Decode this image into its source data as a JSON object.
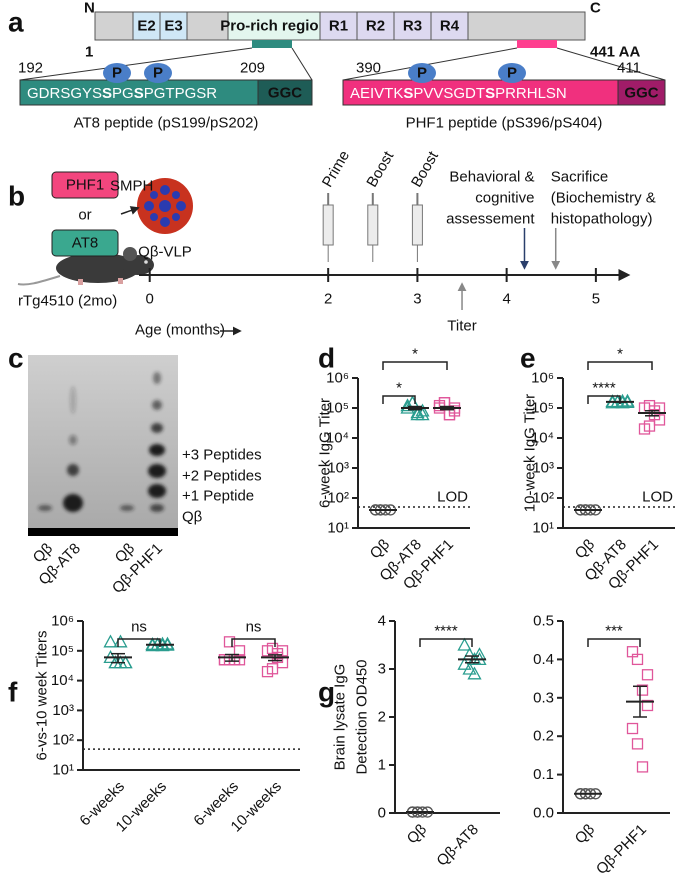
{
  "panel_labels": [
    "a",
    "b",
    "c",
    "d",
    "e",
    "f",
    "g"
  ],
  "protein": {
    "n_term": "N",
    "c_term": "C",
    "start": "1",
    "end": "441 AA",
    "domains": [
      "E2",
      "E3",
      "Pro-rich region",
      "R1",
      "R2",
      "R3",
      "R4"
    ]
  },
  "peptides": [
    {
      "start": "192",
      "end": "209",
      "sequence": [
        "GDRSGYS",
        "S",
        "PG",
        "S",
        "PGTPGSR"
      ],
      "linker": "GGC",
      "phospho": [
        "P",
        "P"
      ],
      "caption": "AT8 peptide (pS199/pS202)"
    },
    {
      "start": "390",
      "end": "411",
      "sequence": [
        "AEIVTK",
        "S",
        "PVVSGDT",
        "S",
        "PRRHLSN"
      ],
      "linker": "GGC",
      "phospho": [
        "P",
        "P"
      ],
      "caption": "PHF1 peptide (pS396/pS404)"
    }
  ],
  "timeline": {
    "conjugate": {
      "peptides": [
        "PHF1",
        "AT8"
      ],
      "or": "or",
      "linker": "SMPH",
      "carrier": "Qβ-VLP"
    },
    "mouse": "rTg4510 (2mo)",
    "xlim": [
      -0.12,
      5.36
    ],
    "xticks": [
      0,
      2,
      3,
      4,
      5
    ],
    "xlabel": "Age (months)",
    "events": [
      {
        "label": "Prime",
        "x": 2
      },
      {
        "label": "Boost",
        "x": 2.5
      },
      {
        "label": "Boost",
        "x": 3
      }
    ],
    "behavioral": {
      "label": [
        "Behavioral &",
        "cognitive",
        "assessement"
      ],
      "x": 4.2
    },
    "sacrifice": {
      "label": [
        "Sacrifice",
        "(Biochemistry &",
        "histopathology)"
      ],
      "x": 4.55
    },
    "titer": {
      "label": "Titer",
      "x": 3.5
    }
  },
  "gel": {
    "bands": [
      "+3 Peptides",
      "+2 Peptides",
      "+1 Peptide",
      "Qβ"
    ],
    "lanes": [
      "Qβ",
      "Qβ-AT8",
      "Qβ",
      "Qβ-PHF1"
    ]
  },
  "chart_data": [
    {
      "type": "dot",
      "ylabel": "6-week IgG Titer",
      "log": true,
      "ylim": [
        10,
        1000000
      ],
      "yticks": [
        {
          "value": 10,
          "label": "10¹"
        },
        {
          "value": 100,
          "label": "10²"
        },
        {
          "value": 1000,
          "label": "10³"
        },
        {
          "value": 10000,
          "label": "10⁴"
        },
        {
          "value": 100000,
          "label": "10⁵"
        },
        {
          "value": 1000000,
          "label": "10⁶"
        }
      ],
      "categories": [
        "Qβ",
        "Qβ-AT8",
        "Qβ-PHF1"
      ],
      "colors": [
        "#555555",
        "#2a9d8f",
        "#e0569a"
      ],
      "markers": [
        "circle",
        "triangle",
        "square"
      ],
      "values": [
        [
          40,
          40,
          40,
          40,
          40,
          40
        ],
        [
          100000,
          150000,
          60000,
          80000,
          120000,
          150000,
          70000,
          60000
        ],
        [
          100000,
          150000,
          60000,
          80000,
          120000,
          150000,
          60000,
          100000
        ]
      ],
      "means": [
        40,
        100000,
        100000
      ],
      "sems": [
        0,
        12000,
        12000
      ],
      "lod": {
        "value": 50,
        "label": "LOD"
      },
      "comparisons": [
        {
          "pair": [
            0,
            1
          ],
          "label": "*"
        },
        {
          "pair": [
            0,
            2
          ],
          "label": "*"
        }
      ]
    },
    {
      "type": "dot",
      "ylabel": "10-week IgG Titer",
      "log": true,
      "ylim": [
        10,
        1000000
      ],
      "yticks": [
        {
          "value": 10,
          "label": "10¹"
        },
        {
          "value": 100,
          "label": "10²"
        },
        {
          "value": 1000,
          "label": "10³"
        },
        {
          "value": 10000,
          "label": "10⁴"
        },
        {
          "value": 100000,
          "label": "10⁵"
        },
        {
          "value": 1000000,
          "label": "10⁶"
        }
      ],
      "categories": [
        "Qβ",
        "Qβ-AT8",
        "Qβ-PHF1"
      ],
      "colors": [
        "#555555",
        "#2a9d8f",
        "#e0569a"
      ],
      "markers": [
        "circle",
        "triangle",
        "square"
      ],
      "values": [
        [
          40,
          40,
          40,
          40,
          40,
          40
        ],
        [
          150000,
          160000,
          170000,
          155000,
          165000,
          160000,
          150000,
          170000
        ],
        [
          100000,
          120000,
          60000,
          40000,
          20000,
          25000,
          80000,
          100000
        ]
      ],
      "means": [
        40,
        160000,
        68000
      ],
      "sems": [
        0,
        3000,
        13000
      ],
      "lod": {
        "value": 50,
        "label": "LOD"
      },
      "comparisons": [
        {
          "pair": [
            0,
            1
          ],
          "label": "****"
        },
        {
          "pair": [
            0,
            2
          ],
          "label": "*"
        }
      ]
    },
    {
      "type": "dot",
      "ylabel": "6-vs-10 week Titers",
      "log": true,
      "ylim": [
        10,
        1000000
      ],
      "yticks": [
        {
          "value": 10,
          "label": "10¹"
        },
        {
          "value": 100,
          "label": "10²"
        },
        {
          "value": 1000,
          "label": "10³"
        },
        {
          "value": 10000,
          "label": "10⁴"
        },
        {
          "value": 100000,
          "label": "10⁵"
        },
        {
          "value": 1000000,
          "label": "10⁶"
        }
      ],
      "categories": [
        "6-weeks",
        "10-weeks",
        "6-weeks",
        "10-weeks"
      ],
      "colors": [
        "#2a9d8f",
        "#2a9d8f",
        "#e0569a",
        "#e0569a"
      ],
      "markers": [
        "triangle",
        "triangle",
        "square",
        "square"
      ],
      "values": [
        [
          200000,
          40000,
          40000,
          40000,
          60000,
          40000,
          200000,
          40000
        ],
        [
          150000,
          160000,
          170000,
          155000,
          165000,
          160000,
          150000,
          170000
        ],
        [
          50000,
          50000,
          50000,
          100000,
          50000,
          200000,
          50000,
          50000
        ],
        [
          100000,
          120000,
          60000,
          40000,
          20000,
          25000,
          80000,
          100000
        ]
      ],
      "means": [
        60000,
        160000,
        60000,
        60000
      ],
      "sems": [
        20000,
        3000,
        15000,
        13000
      ],
      "lod": {
        "value": 50
      },
      "comparisons": [
        {
          "pair": [
            0,
            1
          ],
          "label": "ns"
        },
        {
          "pair": [
            2,
            3
          ],
          "label": "ns"
        }
      ]
    },
    {
      "type": "dot",
      "ylabel": [
        "Brain lysate IgG",
        "Detection OD450"
      ],
      "log": false,
      "ylim": [
        0,
        4
      ],
      "yticks": [
        0,
        1,
        2,
        3,
        4
      ],
      "categories": [
        "Qβ",
        "Qβ-AT8"
      ],
      "colors": [
        "#555555",
        "#2a9d8f"
      ],
      "markers": [
        "circle",
        "triangle"
      ],
      "values": [
        [
          0.02,
          0.02,
          0.02,
          0.02,
          0.02,
          0.02
        ],
        [
          3.5,
          3.3,
          3.2,
          3.2,
          3.1,
          3.0,
          2.9,
          3.3
        ]
      ],
      "means": [
        0.02,
        3.2
      ],
      "sems": [
        0,
        0.07
      ],
      "comparisons": [
        {
          "pair": [
            0,
            1
          ],
          "label": "****"
        }
      ]
    },
    {
      "type": "dot",
      "log": false,
      "ylim": [
        0,
        0.5
      ],
      "yticks": [
        {
          "value": 0,
          "label": "0.0"
        },
        0.1,
        0.2,
        0.3,
        0.4,
        0.5
      ],
      "categories": [
        "Qβ",
        "Qβ-PHF1"
      ],
      "colors": [
        "#555555",
        "#e0569a"
      ],
      "markers": [
        "circle",
        "square"
      ],
      "values": [
        [
          0.05,
          0.05,
          0.05,
          0.05,
          0.05,
          0.05
        ],
        [
          0.42,
          0.4,
          0.32,
          0.28,
          0.22,
          0.18,
          0.12,
          0.36
        ]
      ],
      "means": [
        0.05,
        0.29
      ],
      "sems": [
        0,
        0.04
      ],
      "comparisons": [
        {
          "pair": [
            0,
            1
          ],
          "label": "***"
        }
      ]
    }
  ]
}
